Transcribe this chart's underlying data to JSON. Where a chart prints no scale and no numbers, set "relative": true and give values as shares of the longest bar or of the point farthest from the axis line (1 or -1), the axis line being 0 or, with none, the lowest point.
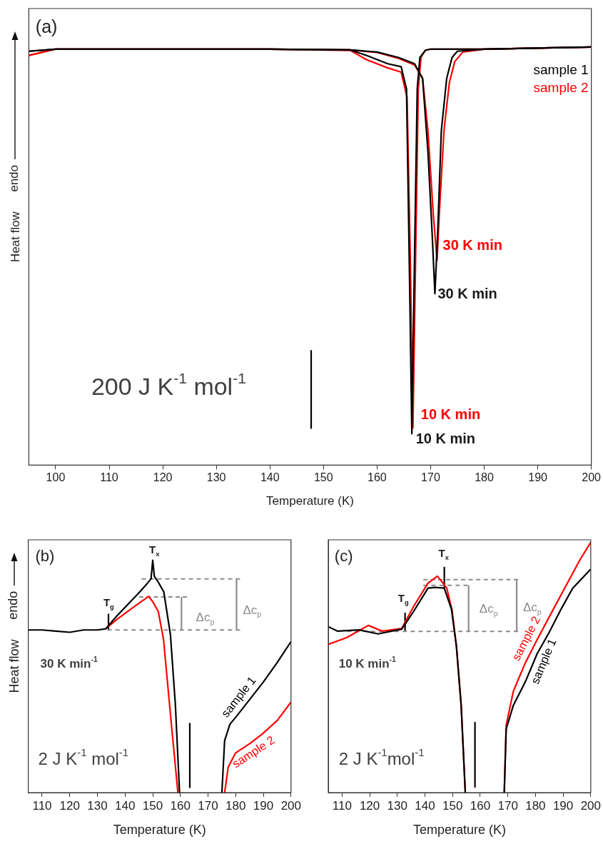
{
  "chart_data": [
    {
      "type": "line",
      "xlabel": "Temperature (K)",
      "ylabel": "Heat flow",
      "relative": true,
      "xlim": [
        95,
        200
      ],
      "xticks": [
        100,
        110,
        120,
        130,
        140,
        150,
        160,
        170,
        180,
        190,
        200
      ],
      "grid": false,
      "legend": "top right",
      "marker": "none",
      "tick_labels": "x",
      "annotations": [
        "(a)",
        "endo",
        "30 K min",
        "30 K min",
        "10 K min",
        "10 K min",
        "200 J K$^{-1}$ mol$^{-1}$"
      ],
      "series": [
        {
          "name": "sample 1",
          "color": "#000000",
          "x": [
            95,
            100,
            140,
            155,
            160,
            164,
            167,
            168.5,
            169.5,
            170.3,
            170.8,
            171.3,
            172,
            173,
            174,
            175,
            180,
            200
          ],
          "values": [
            0.99,
            0.995,
            0.995,
            0.993,
            0.988,
            0.975,
            0.96,
            0.925,
            0.75,
            0.55,
            0.41,
            0.55,
            0.8,
            0.925,
            0.975,
            0.99,
            0.995,
            1
          ]
        },
        {
          "color": "#000000",
          "x": [
            95,
            100,
            140,
            155,
            158,
            162,
            164.5,
            165.5,
            166,
            166.5,
            167,
            167.5,
            168,
            169,
            170,
            180,
            200
          ],
          "values": [
            0.99,
            0.995,
            0.995,
            0.993,
            0.98,
            0.96,
            0.953,
            0.9,
            0.5,
            0.075,
            0.5,
            0.9,
            0.975,
            0.992,
            0.995,
            0.995,
            1
          ]
        },
        {
          "name": "sample 2",
          "color": "#ff0000",
          "x": [
            95,
            100,
            140,
            155,
            160,
            164,
            167,
            168.5,
            169.5,
            170.5,
            171.2,
            171.7,
            172.5,
            173.5,
            174.5,
            176,
            180,
            200
          ],
          "values": [
            0.98,
            0.995,
            0.995,
            0.993,
            0.987,
            0.973,
            0.957,
            0.925,
            0.8,
            0.6,
            0.49,
            0.62,
            0.8,
            0.915,
            0.965,
            0.988,
            0.995,
            1
          ]
        },
        {
          "color": "#ff0000",
          "x": [
            95,
            100,
            140,
            155,
            158,
            162,
            164.5,
            165.6,
            166.2,
            166.7,
            167.2,
            167.7,
            168.2,
            169,
            170,
            180,
            200
          ],
          "values": [
            0.98,
            0.995,
            0.995,
            0.992,
            0.97,
            0.95,
            0.94,
            0.88,
            0.5,
            0.089,
            0.5,
            0.9,
            0.975,
            0.992,
            0.995,
            0.995,
            1
          ]
        },
        {
          "color": "#000000",
          "x": [
            147.7,
            147.7
          ],
          "values": [
            0.087,
            0.275
          ]
        }
      ]
    },
    {
      "type": "line",
      "xlabel": "Temperature (K)",
      "ylabel": "Heat flow",
      "relative": true,
      "xlim": [
        105,
        200
      ],
      "xticks": [
        110,
        120,
        130,
        140,
        150,
        160,
        170,
        180,
        190,
        200
      ],
      "grid": false,
      "marker": "none",
      "tick_labels": "x",
      "annotations": [
        "(b)",
        "endo",
        "30 K min$^{-1}$",
        "T$_{g}$",
        "T$_{x}$",
        "Δc$_{p}$",
        "Δc$_{p}$",
        "2 J K$^{-1}$ mol$^{-1}$"
      ],
      "series": [
        {
          "name": "sample 1",
          "color": "#000000",
          "x": [
            105,
            110,
            115,
            120,
            125,
            130,
            133,
            137,
            141,
            145,
            148,
            149.4,
            150,
            150.6,
            152,
            154,
            156.4,
            158.2,
            159.7,
            167,
            175,
            176,
            177.9,
            180.6,
            185,
            190,
            195,
            200
          ],
          "values": [
            0.7,
            0.7,
            0.695,
            0.69,
            0.7,
            0.7,
            0.705,
            0.76,
            0.81,
            0.86,
            0.9,
            0.92,
            1,
            0.93,
            0.906,
            0.864,
            0.68,
            0.376,
            0,
            null,
            0,
            0.224,
            0.294,
            0.333,
            0.4,
            0.476,
            0.56,
            0.65
          ]
        },
        {
          "name": "sample 2",
          "color": "#ff0000",
          "x": [
            133,
            137,
            141,
            145,
            148.6,
            150.2,
            152,
            153.9,
            156.5,
            159.1,
            167,
            176,
            177.3,
            179.9,
            185,
            189.4,
            195,
            200
          ],
          "values": [
            0.705,
            0.745,
            0.78,
            0.815,
            0.845,
            0.818,
            0.78,
            0.66,
            0.325,
            0,
            null,
            0,
            0.11,
            0.17,
            0.21,
            0.25,
            0.31,
            0.39
          ]
        },
        {
          "color": "#8c8c8c",
          "line_style": "dashed",
          "x": [
            133.6,
            181.6
          ],
          "values": [
            0.7,
            0.7
          ]
        },
        {
          "color": "#8c8c8c",
          "line_style": "dashed",
          "x": [
            146,
            181.6
          ],
          "values": [
            0.92,
            0.92
          ]
        },
        {
          "color": "#8c8c8c",
          "line_style": "dashed",
          "x": [
            145.1,
            162.4
          ],
          "values": [
            0.842,
            0.842
          ]
        },
        {
          "color": "#8c8c8c",
          "x": [
            160.4,
            160.4
          ],
          "values": [
            0.7,
            0.842
          ]
        },
        {
          "color": "#8c8c8c",
          "x": [
            180.3,
            180.3
          ],
          "values": [
            0.7,
            0.92
          ]
        },
        {
          "color": "#000000",
          "x": [
            134,
            134
          ],
          "values": [
            0.7,
            0.77
          ]
        },
        {
          "color": "#000000",
          "x": [
            163.4,
            163.4
          ],
          "values": [
            0.02,
            0.3
          ]
        }
      ]
    },
    {
      "type": "line",
      "xlabel": "Temperature (K)",
      "relative": true,
      "xlim": [
        105,
        200
      ],
      "xticks": [
        110,
        120,
        130,
        140,
        150,
        160,
        170,
        180,
        190,
        200
      ],
      "grid": false,
      "marker": "none",
      "tick_labels": "x",
      "annotations": [
        "(c)",
        "10 K min$^{-1}$",
        "T$_{g}$",
        "T$_{x}$",
        "Δc$_{p}$",
        "Δc$_{p}$",
        "2 J K$^{-1}$mol$^{-1}$"
      ],
      "series": [
        {
          "name": "sample 1",
          "color": "#000000",
          "x": [
            105,
            108.4,
            116.1,
            123,
            131.6,
            135.9,
            141.1,
            143.6,
            147,
            149.6,
            151.4,
            153.1,
            154.6,
            162,
            168.7,
            169.4,
            172,
            176.3,
            180.6,
            184.9,
            189.2,
            193.5,
            200
          ],
          "values": [
            0.663,
            0.645,
            0.65,
            0.634,
            0.653,
            0.724,
            0.817,
            0.82,
            0.817,
            0.732,
            0.583,
            0.349,
            0,
            null,
            0,
            0.254,
            0.349,
            0.442,
            0.555,
            0.639,
            0.732,
            0.817,
            0.893
          ]
        },
        {
          "name": "sample 2",
          "color": "#ff0000",
          "x": [
            105,
            111.8,
            119.5,
            124.6,
            131.6,
            135.9,
            141.1,
            144.5,
            147.9,
            149.8,
            151.4,
            153.1,
            154.6,
            162,
            168.7,
            169.4,
            172,
            176.3,
            180.6,
            189.2,
            196.1,
            200
          ],
          "values": [
            0.592,
            0.62,
            0.668,
            0.645,
            0.656,
            0.744,
            0.837,
            0.865,
            0.817,
            0.73,
            0.583,
            0.349,
            0,
            null,
            0,
            0.27,
            0.405,
            0.518,
            0.611,
            0.789,
            0.93,
            1
          ]
        },
        {
          "color": "#8c8c8c",
          "line_style": "dashed",
          "x": [
            111.8,
            173.7
          ],
          "values": [
            0.644,
            0.644
          ]
        },
        {
          "color": "#8c8c8c",
          "line_style": "dashed",
          "x": [
            139.4,
            173.7
          ],
          "values": [
            0.851,
            0.851
          ]
        },
        {
          "color": "#8c8c8c",
          "line_style": "dashed",
          "x": [
            139.4,
            155.5
          ],
          "values": [
            0.828,
            0.828
          ]
        },
        {
          "color": "#8c8c8c",
          "x": [
            155.8,
            155.8
          ],
          "values": [
            0.644,
            0.828
          ]
        },
        {
          "color": "#8c8c8c",
          "x": [
            173.2,
            173.2
          ],
          "values": [
            0.644,
            0.851
          ]
        },
        {
          "color": "#000000",
          "x": [
            132.8,
            132.8
          ],
          "values": [
            0.645,
            0.719
          ]
        },
        {
          "color": "#000000",
          "x": [
            147,
            147
          ],
          "values": [
            0.817,
            0.902
          ]
        },
        {
          "color": "#000000",
          "x": [
            158.1,
            158.1
          ],
          "values": [
            0.02,
            0.282
          ]
        }
      ]
    }
  ]
}
